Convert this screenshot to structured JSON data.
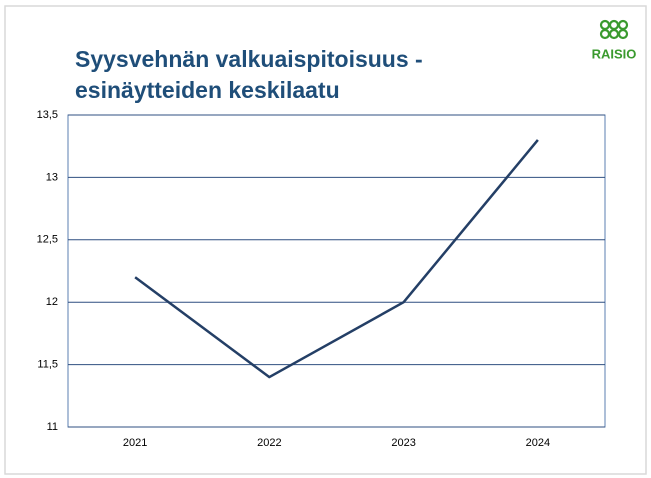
{
  "chart_data": {
    "type": "line",
    "title": [
      "Syysvehnän valkuaispitoisuus -",
      "esinäytteiden keskilaatu"
    ],
    "logo": "RAISIO",
    "categories": [
      "2021",
      "2022",
      "2023",
      "2024"
    ],
    "series": [
      {
        "name": null,
        "color": "#243f66",
        "values": [
          12.2,
          11.4,
          12.0,
          13.3
        ]
      }
    ],
    "ylim": [
      11,
      13.5
    ],
    "yticks": [
      11,
      {
        "value": 11.5,
        "label": "11,5"
      },
      12,
      {
        "value": 12.5,
        "label": "12,5"
      },
      13,
      {
        "value": 13.5,
        "label": "13,5"
      }
    ],
    "grid": true
  }
}
